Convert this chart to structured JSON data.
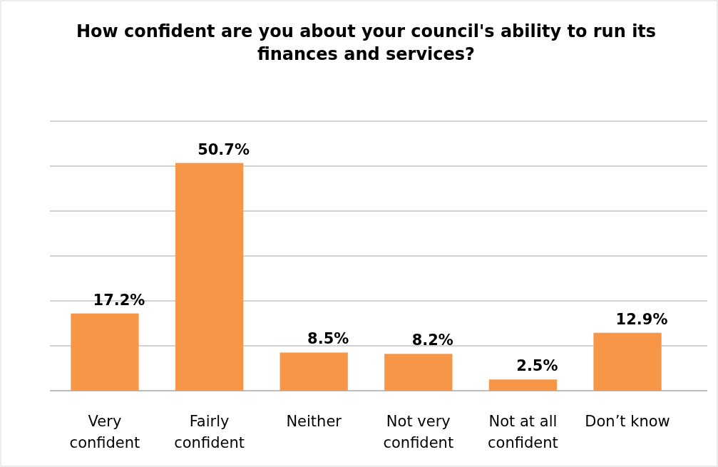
{
  "chart_data": {
    "type": "bar",
    "title": "How confident are you about your council's ability to run its finances and services?",
    "categories": [
      "Very confident",
      "Fairly confident",
      "Neither",
      "Not very confident",
      "Not at all confident",
      "Don’t know"
    ],
    "values": [
      17.2,
      50.7,
      8.5,
      8.2,
      2.5,
      12.9
    ],
    "color": "#f79646",
    "value_labels": [
      "17.2%",
      "50.7%",
      "8.5%",
      "8.2%",
      "2.5%",
      "12.9%"
    ],
    "ylim": [
      0,
      60
    ],
    "yticks": [
      {
        "value": 0,
        "label": null
      },
      {
        "value": 10,
        "label": null
      },
      {
        "value": 20,
        "label": null
      },
      {
        "value": 30,
        "label": null
      },
      {
        "value": 40,
        "label": null
      },
      {
        "value": 50,
        "label": null
      },
      {
        "value": 60,
        "label": null
      }
    ],
    "grid": "y",
    "tick_labels": "x"
  }
}
